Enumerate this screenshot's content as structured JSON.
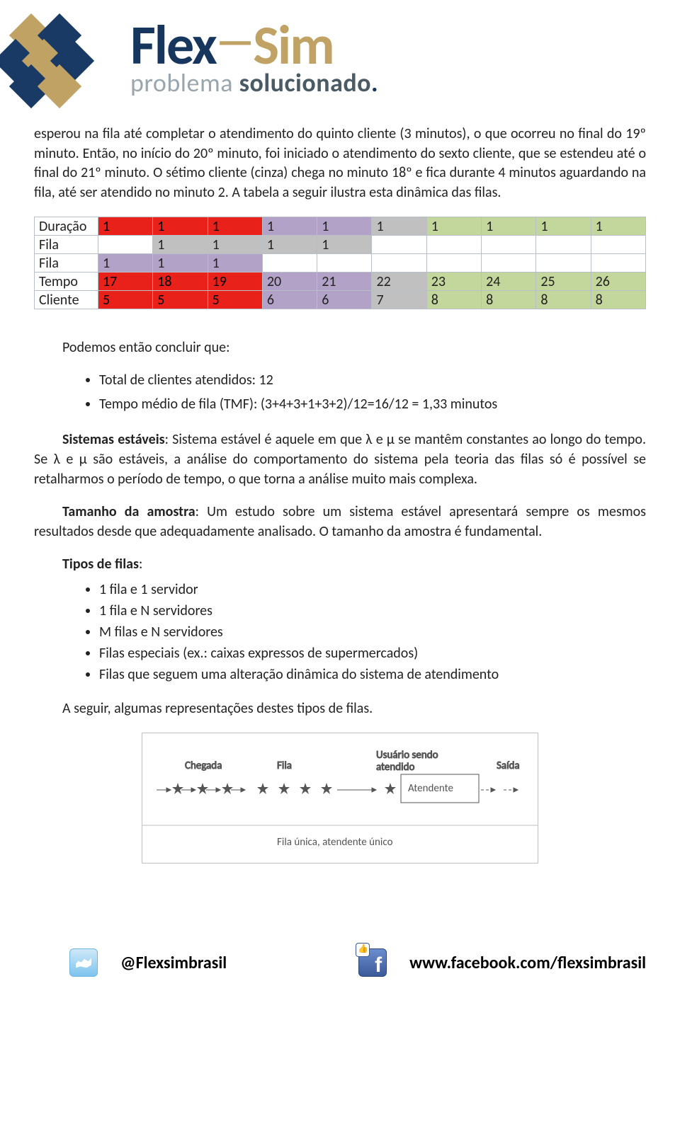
{
  "brand": {
    "flex": "Flex",
    "sim": "Sim"
  },
  "tagline": {
    "pre": "problema ",
    "emph": "solucionado",
    "dot": "."
  },
  "intro": "esperou na fila até completar o atendimento do quinto cliente (3 minutos), o que ocorreu no final do 19º minuto. Então, no início do 20º minuto, foi iniciado o atendimento do sexto cliente, que se estendeu até o final do 21º minuto. O sétimo cliente (cinza) chega no minuto 18º e fica durante 4 minutos aguardando na fila, até ser atendido no minuto 2. A tabela a seguir ilustra esta dinâmica das filas.",
  "table": {
    "row_labels": [
      "Duração",
      "Fila",
      "Fila",
      "Tempo",
      "Cliente"
    ],
    "rows": [
      [
        {
          "v": "1",
          "c": "red"
        },
        {
          "v": "1",
          "c": "red"
        },
        {
          "v": "1",
          "c": "red"
        },
        {
          "v": "1",
          "c": "purple"
        },
        {
          "v": "1",
          "c": "purple"
        },
        {
          "v": "1",
          "c": "grey"
        },
        {
          "v": "1",
          "c": "olive"
        },
        {
          "v": "1",
          "c": "olive"
        },
        {
          "v": "1",
          "c": "olive"
        },
        {
          "v": "1",
          "c": "olive"
        }
      ],
      [
        {
          "v": "",
          "c": "white"
        },
        {
          "v": "1",
          "c": "grey"
        },
        {
          "v": "1",
          "c": "grey"
        },
        {
          "v": "1",
          "c": "grey"
        },
        {
          "v": "1",
          "c": "grey"
        },
        {
          "v": "",
          "c": "white"
        },
        {
          "v": "",
          "c": "white"
        },
        {
          "v": "",
          "c": "white"
        },
        {
          "v": "",
          "c": "white"
        },
        {
          "v": "",
          "c": "white"
        }
      ],
      [
        {
          "v": "1",
          "c": "purple"
        },
        {
          "v": "1",
          "c": "purple"
        },
        {
          "v": "1",
          "c": "purple"
        },
        {
          "v": "",
          "c": "white"
        },
        {
          "v": "",
          "c": "white"
        },
        {
          "v": "",
          "c": "white"
        },
        {
          "v": "",
          "c": "white"
        },
        {
          "v": "",
          "c": "white"
        },
        {
          "v": "",
          "c": "white"
        },
        {
          "v": "",
          "c": "white"
        }
      ],
      [
        {
          "v": "17",
          "c": "red"
        },
        {
          "v": "18",
          "c": "red"
        },
        {
          "v": "19",
          "c": "red"
        },
        {
          "v": "20",
          "c": "purple"
        },
        {
          "v": "21",
          "c": "purple"
        },
        {
          "v": "22",
          "c": "grey"
        },
        {
          "v": "23",
          "c": "olive"
        },
        {
          "v": "24",
          "c": "olive"
        },
        {
          "v": "25",
          "c": "olive"
        },
        {
          "v": "26",
          "c": "olive"
        }
      ],
      [
        {
          "v": "5",
          "c": "red"
        },
        {
          "v": "5",
          "c": "red"
        },
        {
          "v": "5",
          "c": "red"
        },
        {
          "v": "6",
          "c": "purple"
        },
        {
          "v": "6",
          "c": "purple"
        },
        {
          "v": "7",
          "c": "grey"
        },
        {
          "v": "8",
          "c": "olive"
        },
        {
          "v": "8",
          "c": "olive"
        },
        {
          "v": "8",
          "c": "olive"
        },
        {
          "v": "8",
          "c": "olive"
        }
      ]
    ],
    "colors": {
      "red": "#e8211b",
      "grey": "#c0c0c0",
      "purple": "#b3a2c7",
      "olive": "#c3d69b",
      "white": "#ffffff"
    }
  },
  "conclusion_title": "Podemos então concluir que:",
  "conclusion_items": [
    "Total de clientes atendidos: 12",
    "Tempo médio de fila (TMF): (3+4+3+1+3+2)/12=16/12 = 1,33 minutos"
  ],
  "p_stable_label": "Sistemas estáveis",
  "p_stable_body": ":  Sistema estável é aquele em que λ e µ se mantêm constantes ao longo do tempo. Se λ e µ são estáveis, a análise do comportamento do sistema pela teoria das filas só é possível se retalharmos o período de tempo, o que torna a análise muito mais complexa.",
  "p_sample_label": "Tamanho da amostra",
  "p_sample_body": ": Um estudo sobre um sistema estável apresentará sempre os mesmos resultados desde que adequadamente analisado. O tamanho da amostra é fundamental.",
  "queue_types_label": "Tipos de filas",
  "queue_types_colon": ":",
  "queue_types": [
    "1 fila e 1 servidor",
    "1 fila e N servidores",
    "M filas e N servidores",
    "Filas especiais (ex.: caixas expressos de supermercados)",
    "Filas que seguem uma alteração dinâmica do sistema de atendimento"
  ],
  "closing": "A seguir, algumas representações destes tipos de filas.",
  "diagram": {
    "chegada": "Chegada",
    "fila": "Fila",
    "usuario": "Usuário sendo",
    "atendido_lbl": "atendido",
    "atendente": "Atendente",
    "saida": "Saída",
    "caption": "Fila única, atendente único"
  },
  "footer": {
    "twitter": "@Flexsimbrasil",
    "facebook": "www.facebook.com/flexsimbrasil"
  }
}
